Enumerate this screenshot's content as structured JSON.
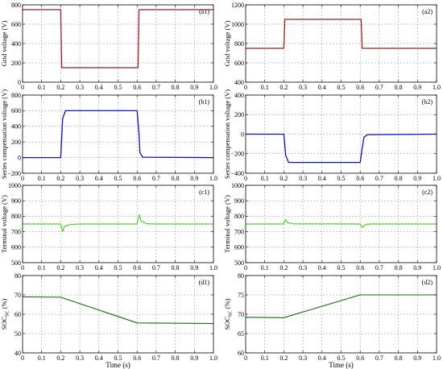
{
  "chart_data": [
    {
      "id": "a1",
      "type": "line",
      "tag": "(a1)",
      "ylabel": "Grid voltage (V)",
      "xlabel": "",
      "xlim": [
        0,
        1
      ],
      "ylim": [
        0,
        800
      ],
      "xticks": [
        "0",
        "0.1",
        "0.2",
        "0.3",
        "0.4",
        "0.5",
        "0.6",
        "0.7",
        "0.8",
        "0.9",
        "1.0"
      ],
      "yticks": [
        "0",
        "200",
        "400",
        "600",
        "800"
      ],
      "series": [
        {
          "color": "#e0a0a8",
          "width": 1.6,
          "x": [
            0,
            0.2,
            0.205,
            0.605,
            0.61,
            1.0
          ],
          "y": [
            750,
            750,
            150,
            150,
            750,
            750
          ]
        },
        {
          "color": "#8b1a10",
          "width": 1.0,
          "x": [
            0,
            0.2,
            0.205,
            0.605,
            0.61,
            1.0
          ],
          "y": [
            750,
            750,
            150,
            150,
            750,
            750
          ]
        }
      ]
    },
    {
      "id": "a2",
      "type": "line",
      "tag": "(a2)",
      "ylabel": "Grid voltage (V)",
      "xlabel": "",
      "xlim": [
        0,
        1
      ],
      "ylim": [
        400,
        1200
      ],
      "xticks": [
        "0",
        "0.1",
        "0.2",
        "0.3",
        "0.4",
        "0.5",
        "0.6",
        "0.7",
        "0.8",
        "0.9",
        "1.0"
      ],
      "yticks": [
        "400",
        "600",
        "800",
        "1000",
        "1200"
      ],
      "series": [
        {
          "color": "#e0a0a8",
          "width": 1.6,
          "x": [
            0,
            0.2,
            0.205,
            0.605,
            0.61,
            1.0
          ],
          "y": [
            750,
            750,
            1050,
            1050,
            750,
            750
          ]
        },
        {
          "color": "#8b1a10",
          "width": 1.0,
          "x": [
            0,
            0.2,
            0.205,
            0.605,
            0.61,
            1.0
          ],
          "y": [
            750,
            750,
            1050,
            1050,
            750,
            750
          ]
        }
      ]
    },
    {
      "id": "b1",
      "type": "line",
      "tag": "(b1)",
      "ylabel": "Series compensation voltage (V)",
      "xlabel": "",
      "xlim": [
        0,
        1
      ],
      "ylim": [
        -200,
        800
      ],
      "xticks": [
        "0",
        "0.1",
        "0.2",
        "0.3",
        "0.4",
        "0.5",
        "0.6",
        "0.7",
        "0.8",
        "0.9",
        "1.0"
      ],
      "yticks": [
        "−200",
        "0",
        "200",
        "400",
        "600",
        "800"
      ],
      "series": [
        {
          "color": "#1010b0",
          "width": 1.3,
          "x": [
            0,
            0.2,
            0.21,
            0.225,
            0.6,
            0.61,
            0.615,
            0.63,
            1.0
          ],
          "y": [
            0,
            0,
            500,
            600,
            600,
            300,
            60,
            5,
            0
          ]
        }
      ]
    },
    {
      "id": "b2",
      "type": "line",
      "tag": "(b2)",
      "ylabel": "Series compensation voltage (V)",
      "xlabel": "",
      "xlim": [
        0,
        1
      ],
      "ylim": [
        -400,
        400
      ],
      "xticks": [
        "0",
        "0.1",
        "0.2",
        "0.3",
        "0.4",
        "0.5",
        "0.6",
        "0.7",
        "0.8",
        "0.9",
        "1.0"
      ],
      "yticks": [
        "−400",
        "−200",
        "0",
        "200",
        "400"
      ],
      "series": [
        {
          "color": "#1010b0",
          "width": 1.3,
          "x": [
            0,
            0.2,
            0.21,
            0.225,
            0.6,
            0.61,
            0.62,
            0.64,
            1.0
          ],
          "y": [
            0,
            0,
            -220,
            -290,
            -290,
            -150,
            -30,
            -5,
            0
          ]
        }
      ]
    },
    {
      "id": "c1",
      "type": "line",
      "tag": "(c1)",
      "ylabel": "Terminal voltage (V)",
      "xlabel": "",
      "xlim": [
        0,
        1
      ],
      "ylim": [
        500,
        1000
      ],
      "xticks": [
        "0",
        "0.1",
        "0.2",
        "0.3",
        "0.4",
        "0.5",
        "0.6",
        "0.7",
        "0.8",
        "0.9",
        "1.0"
      ],
      "yticks": [
        "500",
        "600",
        "700",
        "800",
        "900",
        "1000"
      ],
      "series": [
        {
          "color": "#4fd02a",
          "width": 1.2,
          "x": [
            0,
            0.2,
            0.205,
            0.21,
            0.22,
            0.25,
            0.3,
            0.6,
            0.605,
            0.612,
            0.62,
            0.65,
            0.7,
            1.0
          ],
          "y": [
            750,
            750,
            725,
            700,
            735,
            747,
            750,
            750,
            780,
            810,
            770,
            752,
            750,
            750
          ]
        }
      ]
    },
    {
      "id": "c2",
      "type": "line",
      "tag": "(c2)",
      "ylabel": "Terminal voltage (V)",
      "xlabel": "",
      "xlim": [
        0,
        1
      ],
      "ylim": [
        500,
        1000
      ],
      "xticks": [
        "0",
        "0.1",
        "0.2",
        "0.3",
        "0.4",
        "0.5",
        "0.6",
        "0.7",
        "0.8",
        "0.9",
        "1.0"
      ],
      "yticks": [
        "500",
        "600",
        "700",
        "800",
        "900",
        "1000"
      ],
      "series": [
        {
          "color": "#4fd02a",
          "width": 1.2,
          "x": [
            0,
            0.2,
            0.205,
            0.21,
            0.22,
            0.25,
            0.6,
            0.605,
            0.612,
            0.625,
            0.65,
            1.0
          ],
          "y": [
            750,
            750,
            770,
            778,
            758,
            751,
            750,
            740,
            728,
            745,
            750,
            750
          ]
        }
      ]
    },
    {
      "id": "d1",
      "type": "line",
      "tag": "(d1)",
      "ylabel": "SOC",
      "ylabel_sub": "SC",
      "ylabel_tail": " (%)",
      "xlabel": "Time (s)",
      "xlim": [
        0,
        1
      ],
      "ylim": [
        40,
        80
      ],
      "xticks": [
        "0",
        "0.1",
        "0.2",
        "0.3",
        "0.4",
        "0.5",
        "0.6",
        "0.7",
        "0.8",
        "0.9",
        "1.0"
      ],
      "yticks": [
        "40",
        "50",
        "60",
        "70",
        "80"
      ],
      "series": [
        {
          "color": "#1a6a10",
          "width": 1.1,
          "x": [
            0,
            0.2,
            0.6,
            1.0
          ],
          "y": [
            69,
            68.8,
            55.5,
            55.2
          ]
        }
      ]
    },
    {
      "id": "d2",
      "type": "line",
      "tag": "(d2)",
      "ylabel": "SOC",
      "ylabel_sub": "SC",
      "ylabel_tail": " (%)",
      "xlabel": "Time (s)",
      "xlim": [
        0,
        1
      ],
      "ylim": [
        60,
        80
      ],
      "xticks": [
        "0",
        "0.1",
        "0.2",
        "0.3",
        "0.4",
        "0.5",
        "0.6",
        "0.7",
        "0.8",
        "0.9",
        "1.0"
      ],
      "yticks": [
        "60",
        "65",
        "70",
        "75",
        "80"
      ],
      "series": [
        {
          "color": "#1a6a10",
          "width": 1.1,
          "x": [
            0,
            0.2,
            0.6,
            1.0
          ],
          "y": [
            69.2,
            69.1,
            75,
            75
          ]
        }
      ]
    }
  ]
}
